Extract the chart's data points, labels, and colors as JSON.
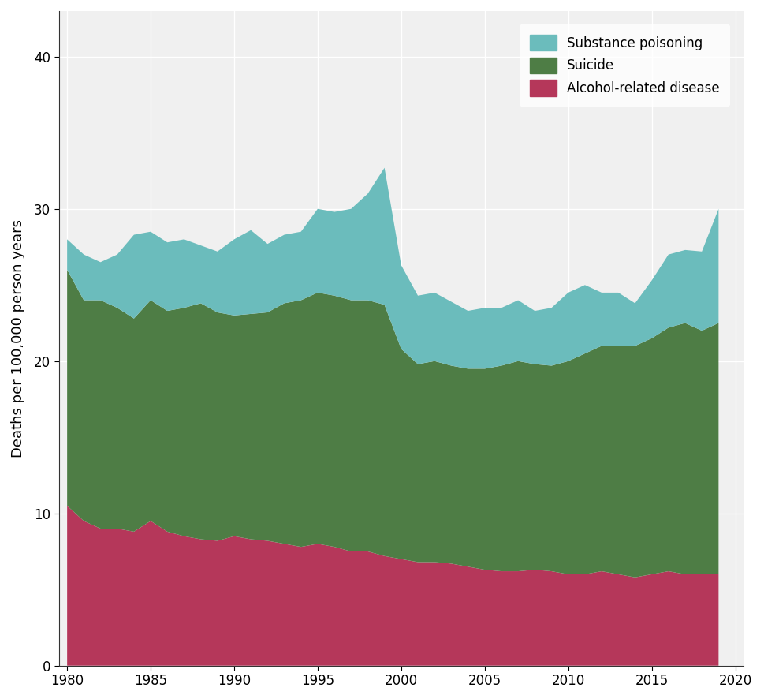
{
  "years": [
    1980,
    1981,
    1982,
    1983,
    1984,
    1985,
    1986,
    1987,
    1988,
    1989,
    1990,
    1991,
    1992,
    1993,
    1994,
    1995,
    1996,
    1997,
    1998,
    1999,
    2000,
    2001,
    2002,
    2003,
    2004,
    2005,
    2006,
    2007,
    2008,
    2009,
    2010,
    2011,
    2012,
    2013,
    2014,
    2015,
    2016,
    2017,
    2018,
    2019
  ],
  "alcohol": [
    10.5,
    9.5,
    9.0,
    9.0,
    8.8,
    9.5,
    8.8,
    8.5,
    8.3,
    8.2,
    8.5,
    8.3,
    8.2,
    8.0,
    7.8,
    8.0,
    7.8,
    7.5,
    7.5,
    7.2,
    7.0,
    6.8,
    6.8,
    6.7,
    6.5,
    6.3,
    6.2,
    6.2,
    6.3,
    6.2,
    6.0,
    6.0,
    6.2,
    6.0,
    5.8,
    6.0,
    6.2,
    6.0,
    6.0,
    6.0
  ],
  "suicide": [
    15.5,
    14.5,
    15.0,
    14.5,
    14.0,
    14.5,
    14.5,
    15.0,
    15.5,
    15.0,
    14.5,
    14.8,
    15.0,
    15.8,
    16.2,
    16.5,
    16.5,
    16.5,
    16.5,
    16.5,
    13.8,
    13.0,
    13.2,
    13.0,
    13.0,
    13.2,
    13.5,
    13.8,
    13.5,
    13.5,
    14.0,
    14.5,
    14.8,
    15.0,
    15.2,
    15.5,
    16.0,
    16.5,
    16.0,
    16.5
  ],
  "substance": [
    2.0,
    3.0,
    2.5,
    3.5,
    5.5,
    4.5,
    4.5,
    4.5,
    3.8,
    4.0,
    5.0,
    5.5,
    4.5,
    4.5,
    4.5,
    5.5,
    5.5,
    6.0,
    7.0,
    9.0,
    5.5,
    4.5,
    4.5,
    4.2,
    3.8,
    4.0,
    3.8,
    4.0,
    3.5,
    3.8,
    4.5,
    4.5,
    3.5,
    3.5,
    2.8,
    3.8,
    4.8,
    4.8,
    5.2,
    7.5
  ],
  "alcohol_color": "#B5375A",
  "suicide_color": "#4E7D45",
  "substance_color": "#6BBCBC",
  "ylabel": "Deaths per 100,000 person years",
  "ylim": [
    0,
    43
  ],
  "yticks": [
    0,
    10,
    20,
    30,
    40
  ],
  "xticks": [
    1980,
    1985,
    1990,
    1995,
    2000,
    2005,
    2010,
    2015,
    2020
  ],
  "xlim_left": 1979.5,
  "xlim_right": 2020.5,
  "legend_labels": [
    "Substance poisoning",
    "Suicide",
    "Alcohol-related disease"
  ],
  "background_color": "#f0f0f0",
  "grid_color": "#ffffff"
}
